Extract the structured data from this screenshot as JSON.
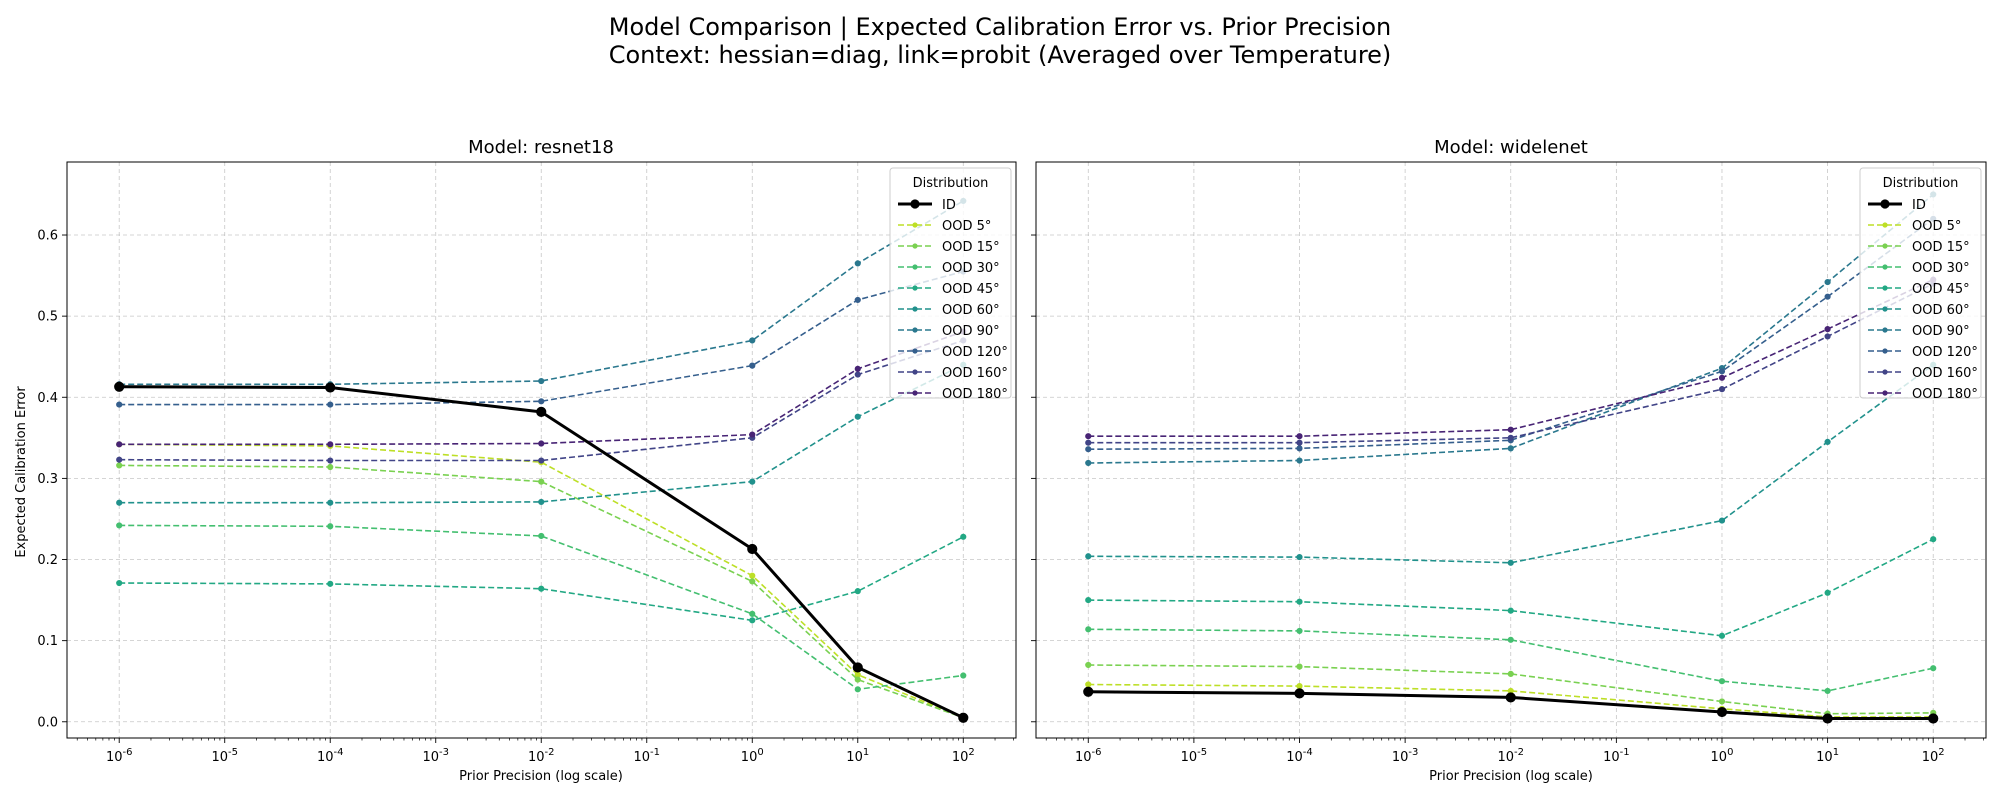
{
  "figure": {
    "title_line1": "Model Comparison | Expected Calibration Error vs. Prior Precision",
    "title_line2": "Context: hessian=diag, link=probit (Averaged over Temperature)"
  },
  "chart_data": [
    {
      "type": "line",
      "title": "Model: resnet18",
      "xlabel": "Prior Precision (log scale)",
      "ylabel": "Expected Calibration Error",
      "xscale": "log",
      "xlim": [
        3.2e-07,
        316
      ],
      "ylim": [
        -0.02,
        0.69
      ],
      "x_ticks": [
        1e-06,
        1e-05,
        0.0001,
        0.001,
        0.01,
        0.1,
        1,
        10,
        100
      ],
      "x_tick_labels": [
        "10^-6",
        "10^-5",
        "10^-4",
        "10^-3",
        "10^-2",
        "10^-1",
        "10^0",
        "10^1",
        "10^2"
      ],
      "y_ticks": [
        0.0,
        0.1,
        0.2,
        0.3,
        0.4,
        0.5,
        0.6
      ],
      "y_tick_labels": [
        "0.0",
        "0.1",
        "0.2",
        "0.3",
        "0.4",
        "0.5",
        "0.6"
      ],
      "grid": true,
      "legend": {
        "title": "Distribution",
        "placement": "top-right"
      },
      "x": [
        1e-06,
        0.0001,
        0.01,
        1,
        10,
        100
      ],
      "series": [
        {
          "name": "ID",
          "color": "#000000",
          "style": "solid",
          "values": [
            0.413,
            0.412,
            0.382,
            0.213,
            0.067,
            0.005
          ]
        },
        {
          "name": "OOD 5°",
          "color": "#bddf26",
          "style": "dashed",
          "values": [
            0.342,
            0.34,
            0.32,
            0.18,
            0.058,
            0.005
          ]
        },
        {
          "name": "OOD 15°",
          "color": "#7ad151",
          "style": "dashed",
          "values": [
            0.316,
            0.314,
            0.296,
            0.173,
            0.052,
            0.005
          ]
        },
        {
          "name": "OOD 30°",
          "color": "#44bf70",
          "style": "dashed",
          "values": [
            0.242,
            0.241,
            0.229,
            0.133,
            0.04,
            0.057
          ]
        },
        {
          "name": "OOD 45°",
          "color": "#22a884",
          "style": "dashed",
          "values": [
            0.171,
            0.17,
            0.164,
            0.125,
            0.161,
            0.228
          ]
        },
        {
          "name": "OOD 60°",
          "color": "#21918c",
          "style": "dashed",
          "values": [
            0.27,
            0.27,
            0.271,
            0.296,
            0.376,
            0.44
          ]
        },
        {
          "name": "OOD 90°",
          "color": "#2a788e",
          "style": "dashed",
          "values": [
            0.416,
            0.416,
            0.42,
            0.47,
            0.565,
            0.642
          ]
        },
        {
          "name": "OOD 120°",
          "color": "#355f8d",
          "style": "dashed",
          "values": [
            0.391,
            0.391,
            0.395,
            0.439,
            0.52,
            0.555
          ]
        },
        {
          "name": "OOD 160°",
          "color": "#414487",
          "style": "dashed",
          "values": [
            0.323,
            0.322,
            0.322,
            0.35,
            0.428,
            0.47
          ]
        },
        {
          "name": "OOD 180°",
          "color": "#482475",
          "style": "dashed",
          "values": [
            0.342,
            0.342,
            0.343,
            0.354,
            0.435,
            0.481
          ]
        }
      ]
    },
    {
      "type": "line",
      "title": "Model: widelenet",
      "xlabel": "Prior Precision (log scale)",
      "ylabel": "",
      "xscale": "log",
      "xlim": [
        3.2e-07,
        316
      ],
      "ylim": [
        -0.02,
        0.69
      ],
      "x_ticks": [
        1e-06,
        1e-05,
        0.0001,
        0.001,
        0.01,
        0.1,
        1,
        10,
        100
      ],
      "x_tick_labels": [
        "10^-6",
        "10^-5",
        "10^-4",
        "10^-3",
        "10^-2",
        "10^-1",
        "10^0",
        "10^1",
        "10^2"
      ],
      "grid": true,
      "legend": {
        "title": "Distribution",
        "placement": "top-right"
      },
      "x": [
        1e-06,
        0.0001,
        0.01,
        1,
        10,
        100
      ],
      "series": [
        {
          "name": "ID",
          "color": "#000000",
          "style": "solid",
          "values": [
            0.037,
            0.035,
            0.03,
            0.012,
            0.004,
            0.004
          ]
        },
        {
          "name": "OOD 5°",
          "color": "#bddf26",
          "style": "dashed",
          "values": [
            0.046,
            0.044,
            0.038,
            0.016,
            0.006,
            0.006
          ]
        },
        {
          "name": "OOD 15°",
          "color": "#7ad151",
          "style": "dashed",
          "values": [
            0.07,
            0.068,
            0.059,
            0.025,
            0.01,
            0.011
          ]
        },
        {
          "name": "OOD 30°",
          "color": "#44bf70",
          "style": "dashed",
          "values": [
            0.114,
            0.112,
            0.101,
            0.05,
            0.038,
            0.066
          ]
        },
        {
          "name": "OOD 45°",
          "color": "#22a884",
          "style": "dashed",
          "values": [
            0.15,
            0.148,
            0.137,
            0.106,
            0.159,
            0.225
          ]
        },
        {
          "name": "OOD 60°",
          "color": "#21918c",
          "style": "dashed",
          "values": [
            0.204,
            0.203,
            0.196,
            0.248,
            0.345,
            0.44
          ]
        },
        {
          "name": "OOD 90°",
          "color": "#2a788e",
          "style": "dashed",
          "values": [
            0.319,
            0.322,
            0.337,
            0.436,
            0.542,
            0.65
          ]
        },
        {
          "name": "OOD 120°",
          "color": "#355f8d",
          "style": "dashed",
          "values": [
            0.336,
            0.337,
            0.347,
            0.432,
            0.524,
            0.62
          ]
        },
        {
          "name": "OOD 160°",
          "color": "#414487",
          "style": "dashed",
          "values": [
            0.344,
            0.344,
            0.35,
            0.41,
            0.475,
            0.54
          ]
        },
        {
          "name": "OOD 180°",
          "color": "#482475",
          "style": "dashed",
          "values": [
            0.352,
            0.352,
            0.36,
            0.424,
            0.484,
            0.545
          ]
        }
      ]
    }
  ]
}
